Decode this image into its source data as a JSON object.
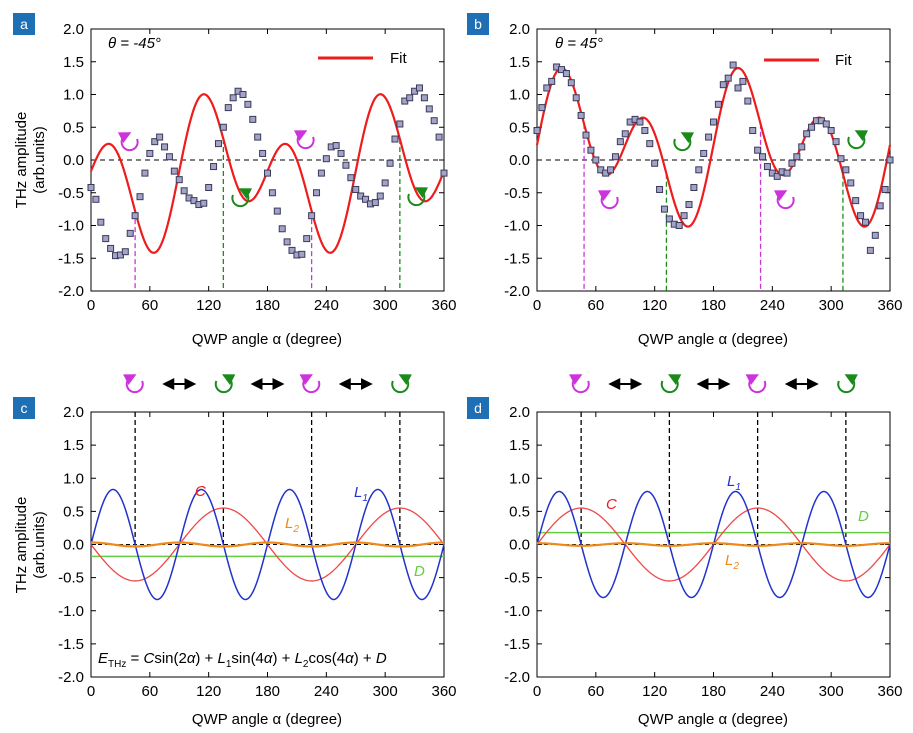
{
  "colors": {
    "fit": "#ee1c1c",
    "data_fill": "#a3a3c8",
    "data_stroke": "#3a3a5a",
    "C": "#ee4a4a",
    "L1": "#2233cc",
    "L2": "#ee8a1a",
    "D": "#66cc44",
    "magenta": "#cc33dd",
    "green": "#1a8a1a",
    "badge": "#1f6fb4"
  },
  "icons": {
    "left_handed": "counterclockwise-circular-arrow-icon",
    "right_handed": "clockwise-circular-arrow-icon",
    "swap": "double-headed-arrow-icon"
  },
  "y_axis": {
    "label_line1": "THz amplitude",
    "label_line2": "(arb.units)"
  },
  "x_axis_label": "QWP angle α (degree)",
  "panels": {
    "a": {
      "letter": "a",
      "theta_label": "θ = -45°",
      "legend": "Fit"
    },
    "b": {
      "letter": "b",
      "theta_label": "θ = 45°",
      "legend": "Fit"
    },
    "c": {
      "letter": "c",
      "labels": {
        "C": "C",
        "L1": "L",
        "L1_sub": "1",
        "L2": "L",
        "L2_sub": "2",
        "D": "D"
      },
      "equation": {
        "E": "E",
        "E_sub": "THz",
        "t1": " = ",
        "t2": "C",
        "t3": "sin(2",
        "t4": "α",
        "t5": ") + ",
        "t6": "L",
        "t7": "1",
        "t8": "sin(4",
        "t9": "α",
        "t10": ") + ",
        "t11": "L",
        "t12": "2",
        "t13": "cos(4",
        "t14": "α",
        "t15": ") + ",
        "t16": "D"
      }
    },
    "d": {
      "letter": "d",
      "labels": {
        "C": "C",
        "L1": "L",
        "L1_sub": "1",
        "L2": "L",
        "L2_sub": "2",
        "D": "D"
      }
    }
  },
  "chart_data": [
    {
      "panel": "a",
      "type": "scatter",
      "ylim": [
        -2.0,
        2.0
      ],
      "xlim": [
        0,
        360
      ],
      "xticks": [
        0,
        60,
        120,
        180,
        240,
        300,
        360
      ],
      "yticks": [
        -2.0,
        -1.5,
        -1.0,
        -0.5,
        0.0,
        0.5,
        1.0,
        1.5,
        2.0
      ],
      "ytick_labels": [
        "-2.0",
        "-1.5",
        "-1.0",
        "-0.5",
        "0.0",
        "0.5",
        "1.0",
        "1.5",
        "2.0"
      ],
      "fit_params": {
        "C": -0.55,
        "L1": 0.8,
        "L2": 0.03,
        "D": -0.2
      },
      "handedness_markers_x": [
        45,
        135,
        225,
        315
      ],
      "handedness_colors": [
        "magenta",
        "green",
        "magenta",
        "green"
      ],
      "series": [
        {
          "name": "Fit",
          "kind": "line"
        },
        {
          "kind": "points",
          "x": [
            0,
            5,
            10,
            15,
            20,
            25,
            30,
            35,
            40,
            45,
            50,
            55,
            60,
            65,
            70,
            75,
            80,
            85,
            90,
            95,
            100,
            105,
            110,
            115,
            120,
            125,
            130,
            135,
            140,
            145,
            150,
            155,
            160,
            165,
            170,
            175,
            180,
            185,
            190,
            195,
            200,
            205,
            210,
            215,
            220,
            225,
            230,
            235,
            240,
            245,
            250,
            255,
            260,
            265,
            270,
            275,
            280,
            285,
            290,
            295,
            300,
            305,
            310,
            315,
            320,
            325,
            330,
            335,
            340,
            345,
            350,
            355,
            360
          ],
          "y": [
            -0.42,
            -0.6,
            -0.95,
            -1.2,
            -1.35,
            -1.46,
            -1.45,
            -1.4,
            -1.12,
            -0.85,
            -0.56,
            -0.2,
            0.1,
            0.28,
            0.35,
            0.2,
            0.05,
            -0.17,
            -0.3,
            -0.47,
            -0.58,
            -0.62,
            -0.68,
            -0.66,
            -0.42,
            -0.1,
            0.25,
            0.5,
            0.8,
            0.95,
            1.05,
            1.0,
            0.85,
            0.62,
            0.35,
            0.1,
            -0.2,
            -0.5,
            -0.78,
            -1.05,
            -1.25,
            -1.38,
            -1.45,
            -1.44,
            -1.2,
            -0.85,
            -0.5,
            -0.2,
            0.02,
            0.2,
            0.22,
            0.1,
            -0.08,
            -0.27,
            -0.45,
            -0.55,
            -0.6,
            -0.67,
            -0.65,
            -0.55,
            -0.35,
            -0.05,
            0.32,
            0.55,
            0.9,
            0.95,
            1.05,
            1.1,
            0.95,
            0.78,
            0.6,
            0.35,
            -0.2
          ]
        }
      ]
    },
    {
      "panel": "b",
      "type": "scatter",
      "ylim": [
        -2.0,
        2.0
      ],
      "xlim": [
        0,
        360
      ],
      "xticks": [
        0,
        60,
        120,
        180,
        240,
        300,
        360
      ],
      "yticks": [
        -2.0,
        -1.5,
        -1.0,
        -0.5,
        0.0,
        0.5,
        1.0,
        1.5,
        2.0
      ],
      "ytick_labels": [
        "-2.0",
        "-1.5",
        "-1.0",
        "-0.5",
        "0.0",
        "0.5",
        "1.0",
        "1.5",
        "2.0"
      ],
      "fit_params": {
        "C": 0.55,
        "L1": 0.8,
        "L2": 0.03,
        "D": 0.2
      },
      "handedness_markers_x": [
        48,
        132,
        228,
        312
      ],
      "handedness_colors": [
        "magenta",
        "green",
        "magenta",
        "green"
      ],
      "series": [
        {
          "name": "Fit",
          "kind": "line"
        },
        {
          "kind": "points",
          "x": [
            0,
            5,
            10,
            15,
            20,
            25,
            30,
            35,
            40,
            45,
            50,
            55,
            60,
            65,
            70,
            75,
            80,
            85,
            90,
            95,
            100,
            105,
            110,
            115,
            120,
            125,
            130,
            135,
            140,
            145,
            150,
            155,
            160,
            165,
            170,
            175,
            180,
            185,
            190,
            195,
            200,
            205,
            210,
            215,
            220,
            225,
            230,
            235,
            240,
            245,
            250,
            255,
            260,
            265,
            270,
            275,
            280,
            285,
            290,
            295,
            300,
            305,
            310,
            315,
            320,
            325,
            330,
            335,
            340,
            345,
            350,
            355,
            360
          ],
          "y": [
            0.45,
            0.8,
            1.1,
            1.2,
            1.42,
            1.38,
            1.32,
            1.18,
            0.95,
            0.68,
            0.38,
            0.15,
            0.0,
            -0.15,
            -0.2,
            -0.15,
            0.05,
            0.28,
            0.4,
            0.58,
            0.62,
            0.58,
            0.45,
            0.25,
            -0.05,
            -0.45,
            -0.75,
            -0.9,
            -0.98,
            -1.0,
            -0.85,
            -0.68,
            -0.42,
            -0.15,
            0.1,
            0.35,
            0.58,
            0.85,
            1.15,
            1.25,
            1.45,
            1.1,
            1.2,
            0.9,
            0.45,
            0.15,
            0.05,
            -0.1,
            -0.2,
            -0.25,
            -0.18,
            -0.2,
            -0.05,
            0.05,
            0.2,
            0.4,
            0.5,
            0.6,
            0.6,
            0.55,
            0.45,
            0.28,
            0.02,
            -0.15,
            -0.35,
            -0.62,
            -0.85,
            -0.95,
            -1.38,
            -1.15,
            -0.7,
            -0.45,
            0.0
          ]
        }
      ]
    },
    {
      "panel": "c",
      "type": "line",
      "ylim": [
        -2.0,
        2.0
      ],
      "xlim": [
        0,
        360
      ],
      "xticks": [
        0,
        60,
        120,
        180,
        240,
        300,
        360
      ],
      "yticks": [
        -2.0,
        -1.5,
        -1.0,
        -0.5,
        0.0,
        0.5,
        1.0,
        1.5,
        2.0
      ],
      "ytick_labels": [
        "-2.0",
        "-1.5",
        "-1.0",
        "-0.5",
        "0.0",
        "0.5",
        "1.0",
        "1.5",
        "2.0"
      ],
      "components": {
        "C": -0.55,
        "L1": 0.83,
        "L2": 0.03,
        "D": -0.18
      },
      "handedness_markers_x": [
        45,
        135,
        225,
        315
      ],
      "handedness_sequence": [
        "magenta",
        "green",
        "magenta",
        "green"
      ]
    },
    {
      "panel": "d",
      "type": "line",
      "ylim": [
        -2.0,
        2.0
      ],
      "xlim": [
        0,
        360
      ],
      "xticks": [
        0,
        60,
        120,
        180,
        240,
        300,
        360
      ],
      "yticks": [
        -2.0,
        -1.5,
        -1.0,
        -0.5,
        0.0,
        0.5,
        1.0,
        1.5,
        2.0
      ],
      "ytick_labels": [
        "-2.0",
        "-1.5",
        "-1.0",
        "-0.5",
        "0.0",
        "0.5",
        "1.0",
        "1.5",
        "2.0"
      ],
      "components": {
        "C": 0.55,
        "L1": 0.8,
        "L2": 0.02,
        "D": 0.18
      },
      "handedness_markers_x": [
        45,
        135,
        225,
        315
      ],
      "handedness_sequence": [
        "magenta",
        "green",
        "magenta",
        "green"
      ]
    }
  ]
}
